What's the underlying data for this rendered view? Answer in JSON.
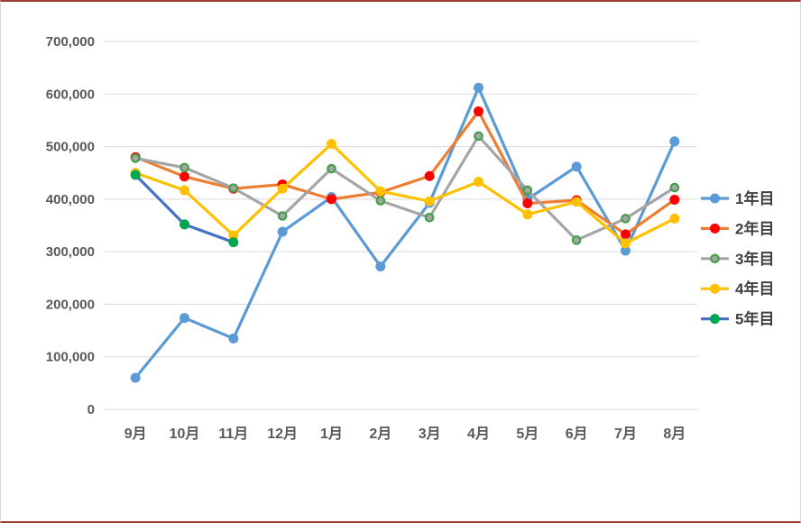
{
  "frame": {
    "border_top_bottom_color": "#9E3B33",
    "border_side_color": "#D6D6D6",
    "background": "#FFFFFF"
  },
  "axis_style": {
    "tick_label_color": "#595959",
    "grid_color": "#D9D9D9",
    "legend_text_color": "#404040"
  },
  "chart_data": {
    "type": "line",
    "title": "",
    "xlabel": "",
    "ylabel": "",
    "grid": true,
    "legend_position": "right",
    "ylim": [
      0,
      700000
    ],
    "ytick_step": 100000,
    "ytick_labels": [
      "0",
      "100,000",
      "200,000",
      "300,000",
      "400,000",
      "500,000",
      "600,000",
      "700,000"
    ],
    "categories": [
      "9月",
      "10月",
      "11月",
      "12月",
      "1月",
      "2月",
      "3月",
      "4月",
      "5月",
      "6月",
      "7月",
      "8月"
    ],
    "series": [
      {
        "name": "1年目",
        "line_color": "#5B9BD5",
        "marker_fill": "#5B9BD5",
        "marker_stroke": "#5B9BD5",
        "values": [
          60000,
          174000,
          135000,
          338000,
          404000,
          272000,
          393000,
          612000,
          400000,
          462000,
          302000,
          510000
        ]
      },
      {
        "name": "2年目",
        "line_color": "#ED7D31",
        "marker_fill": "#FF0000",
        "marker_stroke": "#FF0000",
        "values": [
          480000,
          443000,
          420000,
          428000,
          400000,
          413000,
          444000,
          567000,
          392000,
          398000,
          333000,
          399000
        ]
      },
      {
        "name": "3年目",
        "line_color": "#A5A5A5",
        "marker_fill": "#A6A6A6",
        "marker_stroke": "#43A047",
        "values": [
          478000,
          460000,
          421000,
          368000,
          458000,
          397000,
          365000,
          520000,
          417000,
          322000,
          363000,
          422000
        ]
      },
      {
        "name": "4年目",
        "line_color": "#FFC000",
        "marker_fill": "#FFC000",
        "marker_stroke": "#FFC000",
        "values": [
          450000,
          417000,
          331000,
          420000,
          505000,
          415000,
          396000,
          433000,
          371000,
          395000,
          316000,
          363000
        ]
      },
      {
        "name": "5年目",
        "line_color": "#4472C4",
        "marker_fill": "#00A651",
        "marker_stroke": "#00A651",
        "values": [
          446000,
          352000,
          318000,
          null,
          null,
          null,
          null,
          null,
          null,
          null,
          null,
          null
        ]
      }
    ]
  }
}
